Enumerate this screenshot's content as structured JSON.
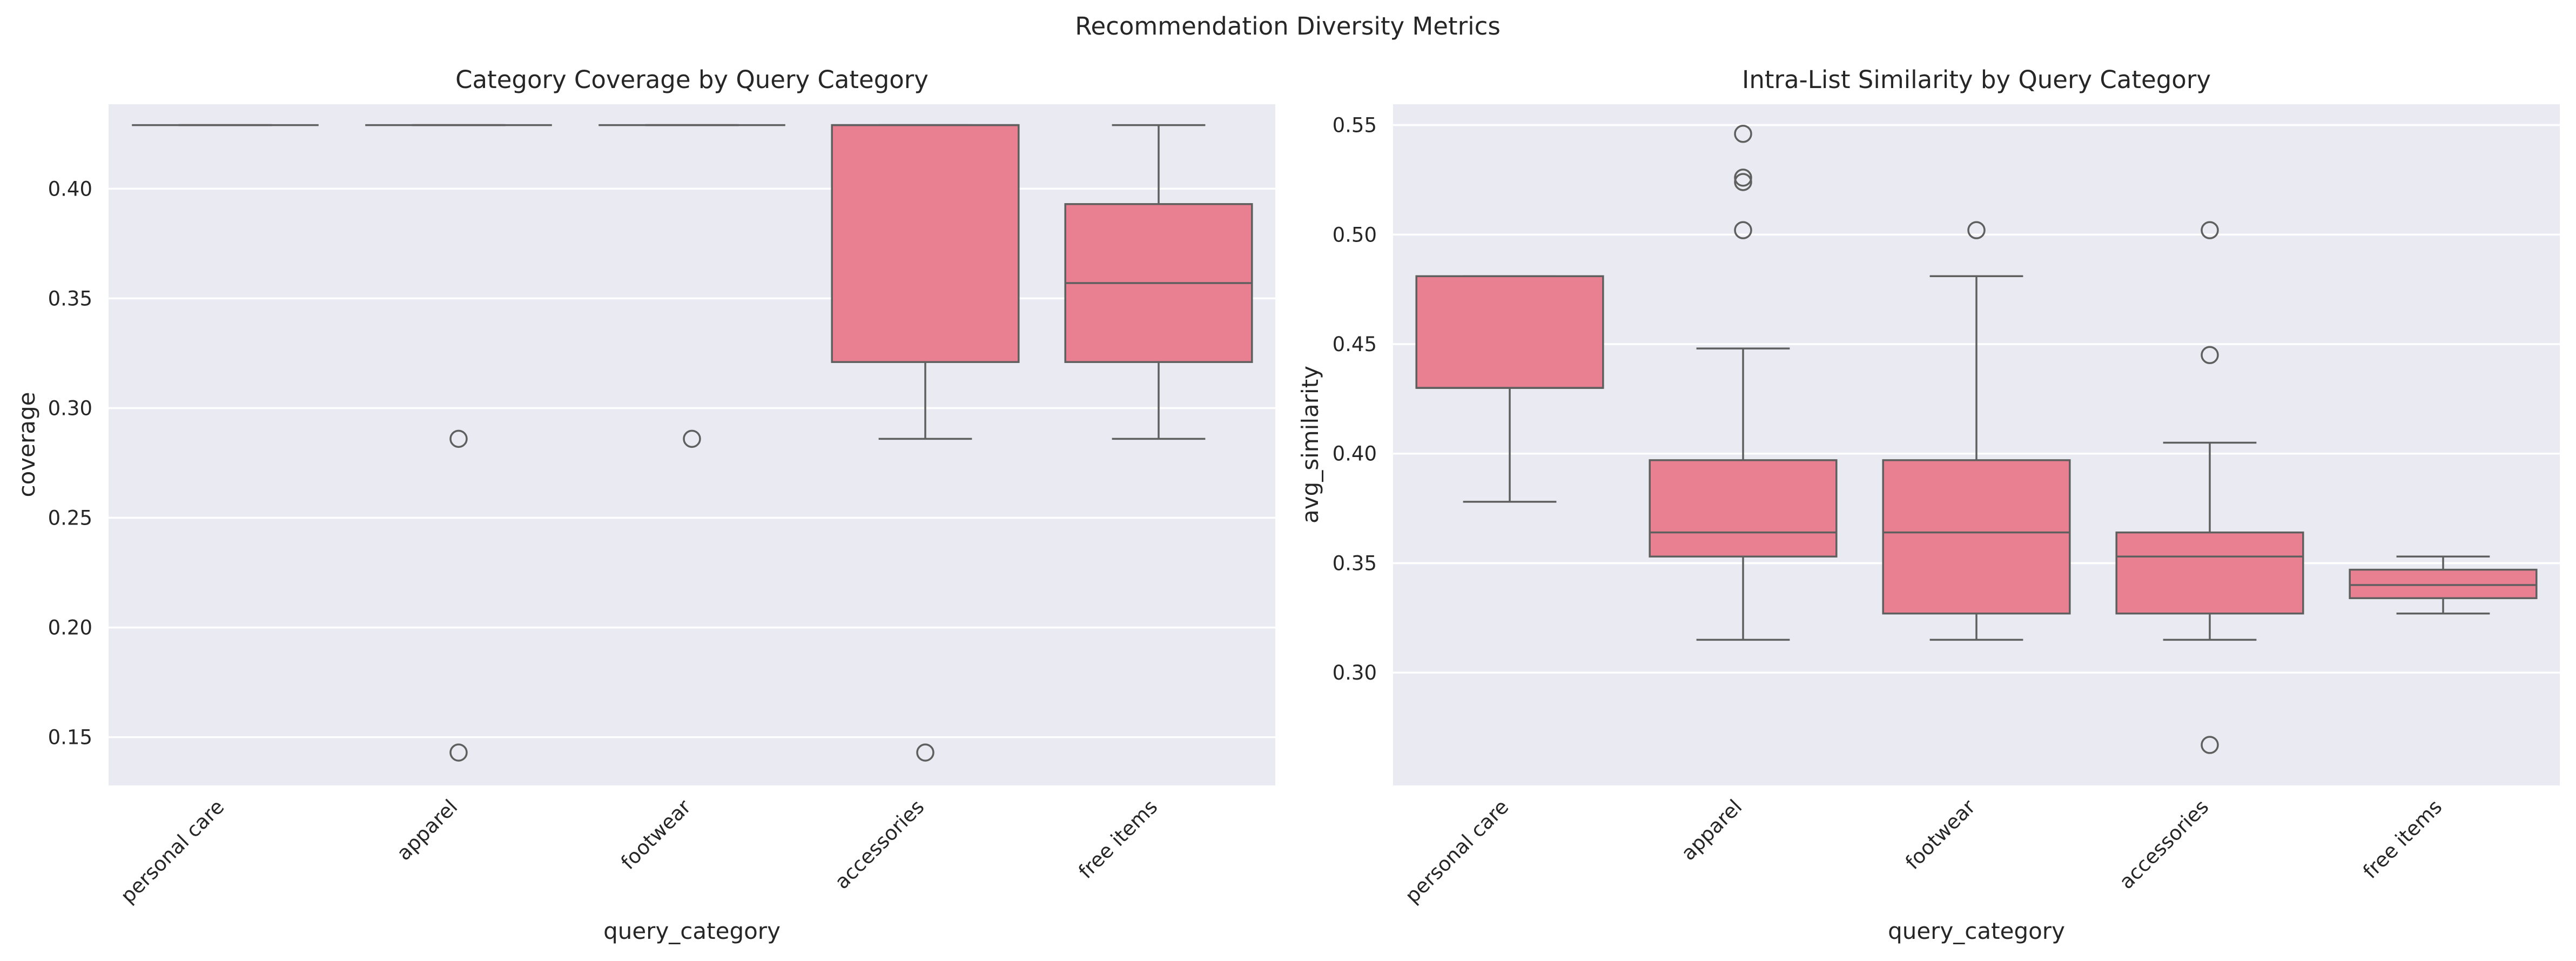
{
  "figure": {
    "title": "Recommendation Diversity Metrics",
    "colors": {
      "background": "#ffffff",
      "axes_face": "#eaeaf2",
      "grid": "#ffffff",
      "box_fill": "#e88092",
      "line": "#5f5f5f"
    }
  },
  "chart_data": [
    {
      "type": "box",
      "title": "Category Coverage by Query Category",
      "xlabel": "query_category",
      "ylabel": "coverage",
      "categories": [
        "personal care",
        "apparel",
        "footwear",
        "accessories",
        "free items"
      ],
      "ylim": [
        0.128,
        0.4385
      ],
      "yticks": [
        0.15,
        0.2,
        0.25,
        0.3,
        0.35,
        0.4
      ],
      "ytick_labels": [
        "0.15",
        "0.20",
        "0.25",
        "0.30",
        "0.35",
        "0.40"
      ],
      "grid": true,
      "boxes": [
        {
          "category": "personal care",
          "whislo": 0.429,
          "q1": 0.429,
          "med": 0.429,
          "q3": 0.429,
          "whishi": 0.429,
          "fliers": []
        },
        {
          "category": "apparel",
          "whislo": 0.429,
          "q1": 0.429,
          "med": 0.429,
          "q3": 0.429,
          "whishi": 0.429,
          "fliers": [
            0.286,
            0.143
          ]
        },
        {
          "category": "footwear",
          "whislo": 0.429,
          "q1": 0.429,
          "med": 0.429,
          "q3": 0.429,
          "whishi": 0.429,
          "fliers": [
            0.286
          ]
        },
        {
          "category": "accessories",
          "whislo": 0.286,
          "q1": 0.321,
          "med": 0.429,
          "q3": 0.429,
          "whishi": 0.429,
          "fliers": [
            0.143
          ]
        },
        {
          "category": "free items",
          "whislo": 0.286,
          "q1": 0.321,
          "med": 0.357,
          "q3": 0.393,
          "whishi": 0.429,
          "fliers": []
        }
      ]
    },
    {
      "type": "box",
      "title": "Intra-List Similarity by Query Category",
      "xlabel": "query_category",
      "ylabel": "avg_similarity",
      "categories": [
        "personal care",
        "apparel",
        "footwear",
        "accessories",
        "free items"
      ],
      "ylim": [
        0.2485,
        0.5595
      ],
      "yticks": [
        0.3,
        0.35,
        0.4,
        0.45,
        0.5,
        0.55
      ],
      "ytick_labels": [
        "0.30",
        "0.35",
        "0.40",
        "0.45",
        "0.50",
        "0.55"
      ],
      "grid": true,
      "boxes": [
        {
          "category": "personal care",
          "whislo": 0.378,
          "q1": 0.43,
          "med": 0.43,
          "q3": 0.481,
          "whishi": 0.481,
          "fliers": []
        },
        {
          "category": "apparel",
          "whislo": 0.315,
          "q1": 0.353,
          "med": 0.364,
          "q3": 0.397,
          "whishi": 0.448,
          "fliers": [
            0.502,
            0.524,
            0.526,
            0.546
          ]
        },
        {
          "category": "footwear",
          "whislo": 0.315,
          "q1": 0.327,
          "med": 0.364,
          "q3": 0.397,
          "whishi": 0.481,
          "fliers": [
            0.502
          ]
        },
        {
          "category": "accessories",
          "whislo": 0.315,
          "q1": 0.327,
          "med": 0.353,
          "q3": 0.364,
          "whishi": 0.405,
          "fliers": [
            0.445,
            0.502,
            0.267
          ]
        },
        {
          "category": "free items",
          "whislo": 0.327,
          "q1": 0.334,
          "med": 0.34,
          "q3": 0.347,
          "whishi": 0.353,
          "fliers": []
        }
      ]
    }
  ]
}
